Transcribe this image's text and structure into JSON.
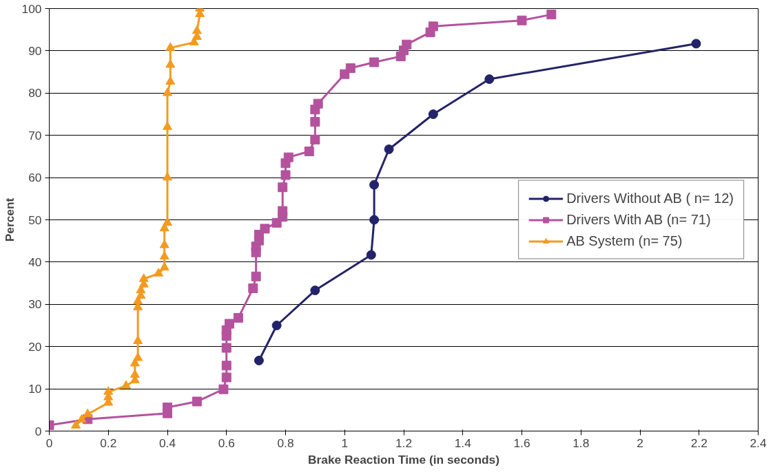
{
  "chart_data": {
    "type": "line",
    "xlabel": "Brake Reaction Time (in seconds)",
    "ylabel": "Percent",
    "xlim": [
      0,
      2.4
    ],
    "xticks": [
      0,
      {
        "value": 0.2,
        "label": "0.2"
      },
      {
        "value": 0.4,
        "label": "0.4"
      },
      {
        "value": 0.6,
        "label": "0.6"
      },
      {
        "value": 0.8,
        "label": "0.8"
      },
      1,
      {
        "value": 1.2,
        "label": "1.2"
      },
      {
        "value": 1.4,
        "label": "1.4"
      },
      {
        "value": 1.6,
        "label": "1.6"
      },
      {
        "value": 1.8,
        "label": "1.8"
      },
      2,
      {
        "value": 2.2,
        "label": "2.2"
      },
      {
        "value": 2.4,
        "label": "2.4"
      }
    ],
    "ylim": [
      0,
      100
    ],
    "yticks": [
      0,
      10,
      20,
      30,
      40,
      50,
      60,
      70,
      80,
      90,
      100
    ],
    "grid": "y",
    "legend": "right",
    "series": [
      {
        "name": "Drivers Without AB ( n= 12)",
        "color": "#232369",
        "marker": "circle",
        "x": [
          0.71,
          0.77,
          0.9,
          1.09,
          1.1,
          1.1,
          1.15,
          1.3,
          1.49,
          2.19
        ],
        "values": [
          16.7,
          25,
          33.3,
          41.7,
          50,
          58.3,
          66.7,
          75,
          83.3,
          91.7
        ]
      },
      {
        "name": "Drivers With AB (n= 71)",
        "color": "#b4529e",
        "marker": "square",
        "x": [
          0,
          0.13,
          0.4,
          0.4,
          0.5,
          0.59,
          0.6,
          0.6,
          0.6,
          0.6,
          0.6,
          0.61,
          0.64,
          0.69,
          0.7,
          0.7,
          0.7,
          0.71,
          0.71,
          0.73,
          0.77,
          0.79,
          0.79,
          0.79,
          0.8,
          0.8,
          0.81,
          0.88,
          0.9,
          0.9,
          0.9,
          0.91,
          1.0,
          1.02,
          1.1,
          1.19,
          1.2,
          1.21,
          1.29,
          1.3,
          1.6,
          1.7
        ],
        "values": [
          1.4,
          2.8,
          4.2,
          5.6,
          7.0,
          9.9,
          12.7,
          15.5,
          19.7,
          22.5,
          23.9,
          25.4,
          26.8,
          33.8,
          36.6,
          42.3,
          43.7,
          45.1,
          46.5,
          47.9,
          49.3,
          50.7,
          52.1,
          57.7,
          60.6,
          63.4,
          64.8,
          66.2,
          69.0,
          73.2,
          76.1,
          77.5,
          84.5,
          85.9,
          87.3,
          88.7,
          90.1,
          91.5,
          94.4,
          95.8,
          97.2,
          98.6
        ]
      },
      {
        "name": "AB System (n= 75)",
        "color": "#f39a1f",
        "marker": "triangle",
        "x": [
          0.09,
          0.11,
          0.13,
          0.2,
          0.2,
          0.2,
          0.26,
          0.29,
          0.29,
          0.29,
          0.3,
          0.3,
          0.3,
          0.3,
          0.31,
          0.31,
          0.32,
          0.32,
          0.37,
          0.39,
          0.39,
          0.39,
          0.39,
          0.4,
          0.4,
          0.4,
          0.4,
          0.41,
          0.41,
          0.41,
          0.49,
          0.5,
          0.5,
          0.51,
          0.51
        ],
        "values": [
          1.3,
          2.7,
          4.0,
          6.7,
          8.0,
          9.3,
          10.7,
          12.0,
          13.3,
          16.0,
          17.3,
          21.3,
          29.3,
          30.7,
          32.0,
          33.3,
          34.7,
          36.0,
          37.3,
          38.7,
          41.3,
          44.0,
          48.0,
          49.3,
          60.0,
          72.0,
          80.0,
          82.7,
          86.7,
          90.7,
          92.0,
          93.3,
          94.7,
          98.7,
          100
        ]
      }
    ]
  }
}
